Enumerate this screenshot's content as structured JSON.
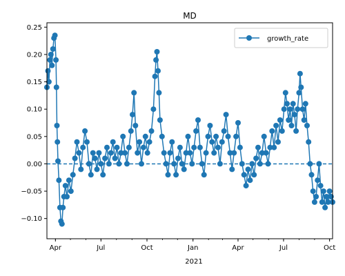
{
  "chart_data": {
    "type": "line",
    "title": "MD",
    "xlabel": "",
    "ylabel": "",
    "year_label": "2021",
    "x_ticks": [
      "Apr",
      "Jul",
      "Oct",
      "Jan",
      "Apr",
      "Jul",
      "Oct"
    ],
    "x_tick_dates": [
      "2020-04-01",
      "2020-07-01",
      "2020-10-01",
      "2021-01-01",
      "2021-04-01",
      "2021-07-01",
      "2021-10-01"
    ],
    "xlim": [
      "2020-03-15",
      "2021-10-07"
    ],
    "y_ticks": [
      "−0.10",
      "−0.05",
      "0.00",
      "0.05",
      "0.10",
      "0.15",
      "0.20",
      "0.25"
    ],
    "y_tick_values": [
      -0.1,
      -0.05,
      0.0,
      0.05,
      0.1,
      0.15,
      0.2,
      0.25
    ],
    "ylim": [
      -0.137,
      0.258
    ],
    "reference_line": {
      "y": 0.0,
      "style": "dashed"
    },
    "grid": false,
    "legend": {
      "placement": "top-right",
      "entries": [
        "growth_rate"
      ]
    },
    "colors": {
      "series": "#1f77b4"
    },
    "series": [
      {
        "name": "growth_rate",
        "marker": "circle",
        "points": [
          [
            "2020-03-15",
            0.14
          ],
          [
            "2020-03-17",
            0.17
          ],
          [
            "2020-03-19",
            0.15
          ],
          [
            "2020-03-21",
            0.19
          ],
          [
            "2020-03-23",
            0.2
          ],
          [
            "2020-03-25",
            0.18
          ],
          [
            "2020-03-27",
            0.21
          ],
          [
            "2020-03-29",
            0.23
          ],
          [
            "2020-03-31",
            0.235
          ],
          [
            "2020-04-02",
            0.19
          ],
          [
            "2020-04-03",
            0.14
          ],
          [
            "2020-04-04",
            0.07
          ],
          [
            "2020-04-05",
            0.04
          ],
          [
            "2020-04-06",
            0.005
          ],
          [
            "2020-04-08",
            -0.03
          ],
          [
            "2020-04-10",
            -0.08
          ],
          [
            "2020-04-12",
            -0.105
          ],
          [
            "2020-04-14",
            -0.11
          ],
          [
            "2020-04-16",
            -0.08
          ],
          [
            "2020-04-18",
            -0.06
          ],
          [
            "2020-04-21",
            -0.04
          ],
          [
            "2020-04-24",
            -0.06
          ],
          [
            "2020-04-28",
            -0.03
          ],
          [
            "2020-05-02",
            -0.05
          ],
          [
            "2020-05-06",
            -0.02
          ],
          [
            "2020-05-10",
            0.01
          ],
          [
            "2020-05-14",
            0.04
          ],
          [
            "2020-05-18",
            0.02
          ],
          [
            "2020-05-22",
            -0.01
          ],
          [
            "2020-05-26",
            0.03
          ],
          [
            "2020-05-30",
            0.06
          ],
          [
            "2020-06-03",
            0.04
          ],
          [
            "2020-06-07",
            0.0
          ],
          [
            "2020-06-11",
            -0.02
          ],
          [
            "2020-06-15",
            0.02
          ],
          [
            "2020-06-19",
            0.01
          ],
          [
            "2020-06-23",
            -0.01
          ],
          [
            "2020-06-27",
            0.02
          ],
          [
            "2020-07-01",
            0.0
          ],
          [
            "2020-07-05",
            -0.02
          ],
          [
            "2020-07-09",
            0.01
          ],
          [
            "2020-07-13",
            0.03
          ],
          [
            "2020-07-17",
            0.0
          ],
          [
            "2020-07-21",
            0.02
          ],
          [
            "2020-07-25",
            0.04
          ],
          [
            "2020-07-29",
            0.01
          ],
          [
            "2020-08-02",
            0.03
          ],
          [
            "2020-08-06",
            0.0
          ],
          [
            "2020-08-10",
            0.02
          ],
          [
            "2020-08-14",
            0.05
          ],
          [
            "2020-08-18",
            0.02
          ],
          [
            "2020-08-22",
            0.0
          ],
          [
            "2020-08-26",
            0.03
          ],
          [
            "2020-08-30",
            0.06
          ],
          [
            "2020-09-02",
            0.09
          ],
          [
            "2020-09-05",
            0.13
          ],
          [
            "2020-09-08",
            0.07
          ],
          [
            "2020-09-12",
            0.02
          ],
          [
            "2020-09-16",
            0.04
          ],
          [
            "2020-09-20",
            0.0
          ],
          [
            "2020-09-24",
            0.03
          ],
          [
            "2020-09-28",
            0.05
          ],
          [
            "2020-10-02",
            0.02
          ],
          [
            "2020-10-06",
            0.04
          ],
          [
            "2020-10-10",
            0.06
          ],
          [
            "2020-10-14",
            0.1
          ],
          [
            "2020-10-17",
            0.16
          ],
          [
            "2020-10-19",
            0.19
          ],
          [
            "2020-10-21",
            0.205
          ],
          [
            "2020-10-23",
            0.17
          ],
          [
            "2020-10-25",
            0.13
          ],
          [
            "2020-10-27",
            0.08
          ],
          [
            "2020-10-31",
            0.05
          ],
          [
            "2020-11-04",
            0.02
          ],
          [
            "2020-11-08",
            0.0
          ],
          [
            "2020-11-12",
            -0.02
          ],
          [
            "2020-11-16",
            0.02
          ],
          [
            "2020-11-20",
            0.04
          ],
          [
            "2020-11-24",
            0.0
          ],
          [
            "2020-11-28",
            -0.02
          ],
          [
            "2020-12-02",
            0.01
          ],
          [
            "2020-12-06",
            0.03
          ],
          [
            "2020-12-10",
            0.0
          ],
          [
            "2020-12-14",
            -0.01
          ],
          [
            "2020-12-18",
            0.02
          ],
          [
            "2020-12-22",
            0.05
          ],
          [
            "2020-12-26",
            0.02
          ],
          [
            "2020-12-30",
            0.0
          ],
          [
            "2021-01-03",
            0.03
          ],
          [
            "2021-01-07",
            0.06
          ],
          [
            "2021-01-11",
            0.08
          ],
          [
            "2021-01-15",
            0.03
          ],
          [
            "2021-01-19",
            0.0
          ],
          [
            "2021-01-23",
            -0.02
          ],
          [
            "2021-01-27",
            0.02
          ],
          [
            "2021-01-31",
            0.05
          ],
          [
            "2021-02-04",
            0.07
          ],
          [
            "2021-02-08",
            0.04
          ],
          [
            "2021-02-12",
            0.02
          ],
          [
            "2021-02-16",
            0.05
          ],
          [
            "2021-02-20",
            0.03
          ],
          [
            "2021-02-24",
            0.0
          ],
          [
            "2021-02-28",
            0.04
          ],
          [
            "2021-03-04",
            0.06
          ],
          [
            "2021-03-08",
            0.09
          ],
          [
            "2021-03-12",
            0.05
          ],
          [
            "2021-03-16",
            0.02
          ],
          [
            "2021-03-20",
            -0.01
          ],
          [
            "2021-03-24",
            0.02
          ],
          [
            "2021-03-28",
            0.05
          ],
          [
            "2021-04-01",
            0.075
          ],
          [
            "2021-04-05",
            0.03
          ],
          [
            "2021-04-09",
            0.0
          ],
          [
            "2021-04-13",
            -0.02
          ],
          [
            "2021-04-17",
            -0.04
          ],
          [
            "2021-04-21",
            -0.01
          ],
          [
            "2021-04-25",
            -0.03
          ],
          [
            "2021-04-29",
            0.0
          ],
          [
            "2021-05-03",
            -0.02
          ],
          [
            "2021-05-07",
            0.01
          ],
          [
            "2021-05-11",
            0.03
          ],
          [
            "2021-05-15",
            0.0
          ],
          [
            "2021-05-19",
            0.02
          ],
          [
            "2021-05-23",
            0.05
          ],
          [
            "2021-05-27",
            0.02
          ],
          [
            "2021-05-31",
            0.0
          ],
          [
            "2021-06-04",
            0.03
          ],
          [
            "2021-06-08",
            0.06
          ],
          [
            "2021-06-12",
            0.03
          ],
          [
            "2021-06-16",
            0.07
          ],
          [
            "2021-06-20",
            0.04
          ],
          [
            "2021-06-24",
            0.08
          ],
          [
            "2021-06-28",
            0.06
          ],
          [
            "2021-07-02",
            0.1
          ],
          [
            "2021-07-05",
            0.13
          ],
          [
            "2021-07-08",
            0.11
          ],
          [
            "2021-07-11",
            0.08
          ],
          [
            "2021-07-14",
            0.1
          ],
          [
            "2021-07-17",
            0.07
          ],
          [
            "2021-07-20",
            0.11
          ],
          [
            "2021-07-23",
            0.09
          ],
          [
            "2021-07-26",
            0.06
          ],
          [
            "2021-07-29",
            0.1
          ],
          [
            "2021-08-01",
            0.13
          ],
          [
            "2021-08-03",
            0.165
          ],
          [
            "2021-08-05",
            0.14
          ],
          [
            "2021-08-08",
            0.1
          ],
          [
            "2021-08-11",
            0.08
          ],
          [
            "2021-08-14",
            0.11
          ],
          [
            "2021-08-17",
            0.07
          ],
          [
            "2021-08-20",
            0.04
          ],
          [
            "2021-08-23",
            0.0
          ],
          [
            "2021-08-26",
            -0.02
          ],
          [
            "2021-08-29",
            -0.05
          ],
          [
            "2021-09-01",
            -0.07
          ],
          [
            "2021-09-04",
            -0.06
          ],
          [
            "2021-09-07",
            -0.03
          ],
          [
            "2021-09-10",
            0.0
          ],
          [
            "2021-09-13",
            -0.04
          ],
          [
            "2021-09-16",
            -0.07
          ],
          [
            "2021-09-19",
            -0.05
          ],
          [
            "2021-09-22",
            -0.08
          ],
          [
            "2021-09-25",
            -0.06
          ],
          [
            "2021-09-28",
            -0.07
          ],
          [
            "2021-10-01",
            -0.05
          ],
          [
            "2021-10-04",
            -0.06
          ],
          [
            "2021-10-07",
            -0.07
          ]
        ]
      }
    ]
  }
}
